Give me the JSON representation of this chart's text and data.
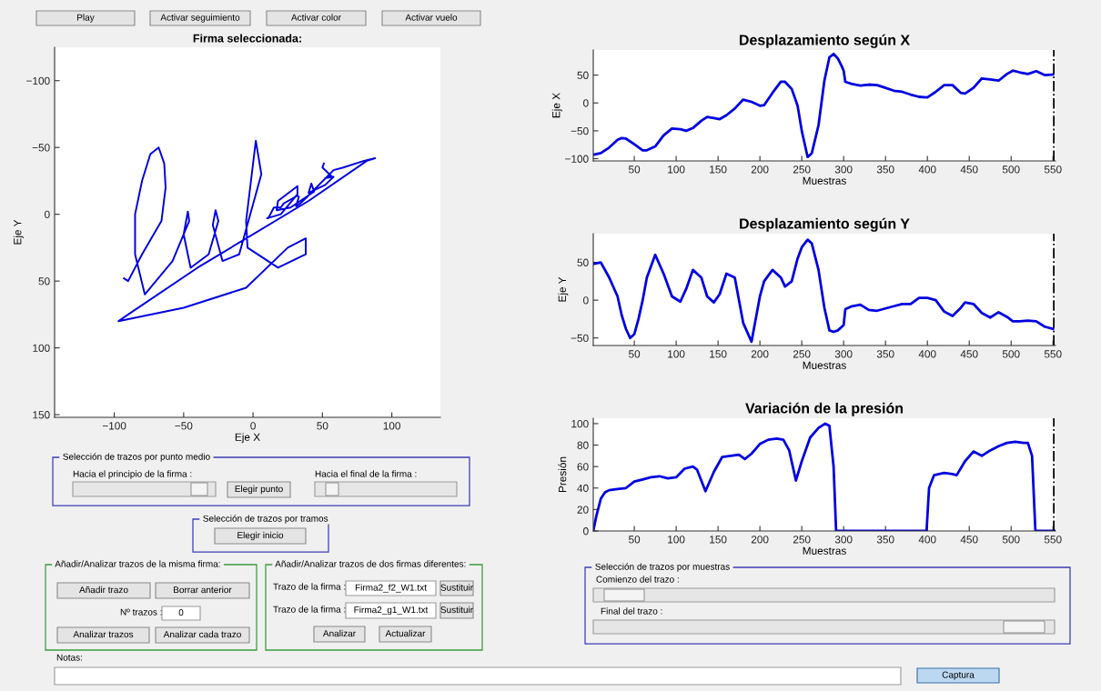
{
  "chart_data": [
    {
      "type": "line",
      "title": "Firma seleccionada:",
      "xlabel": "Eje X",
      "ylabel": "Eje Y",
      "xlim": [
        -143,
        135
      ],
      "ylim": [
        152,
        -125
      ],
      "xticks": [
        -100,
        -50,
        0,
        50,
        100
      ],
      "yticks": [
        -100,
        -50,
        0,
        50,
        100,
        150
      ],
      "grid": false,
      "marker": "none",
      "line_style": "solid",
      "series": [
        {
          "color": "#0000e0",
          "x": [
            -93,
            -90,
            -80,
            -66,
            -63,
            -64,
            -68,
            -74,
            -80,
            -85,
            -85,
            -78,
            -58,
            -46,
            -47,
            -50,
            -45,
            -32,
            -25,
            -27,
            -29,
            -22,
            -10,
            6,
            2,
            -5,
            -4,
            18,
            38,
            38,
            25,
            -5,
            -50,
            -97,
            -90,
            -40,
            40,
            82,
            88,
            80,
            65,
            58,
            38,
            34,
            31,
            33,
            32,
            27,
            22,
            20,
            15,
            11,
            10,
            20,
            32,
            32,
            18,
            17,
            27,
            44,
            42,
            40,
            52,
            58,
            55,
            52,
            57,
            50,
            51
          ],
          "values": [
            48,
            50,
            30,
            5,
            -20,
            -38,
            -50,
            -45,
            -25,
            0,
            30,
            60,
            35,
            5,
            -2,
            15,
            40,
            30,
            5,
            -3,
            8,
            35,
            30,
            -30,
            -55,
            5,
            25,
            40,
            30,
            18,
            25,
            55,
            70,
            80,
            75,
            40,
            -10,
            -40,
            -42,
            -40,
            -35,
            -33,
            -12,
            -8,
            -6,
            -13,
            -14,
            -11,
            -8,
            -5,
            -5,
            3,
            3,
            0,
            -15,
            -21,
            -10,
            -3,
            -5,
            -17,
            -23,
            -16,
            -22,
            -28,
            -28,
            -27,
            -28,
            -35,
            -38
          ]
        }
      ]
    },
    {
      "type": "line",
      "title": "Desplazamiento según X",
      "xlabel": "Muestras",
      "ylabel": "Eje X",
      "xlim": [
        1,
        553
      ],
      "ylim": [
        -104,
        95
      ],
      "xticks": [
        50,
        100,
        150,
        200,
        250,
        300,
        350,
        400,
        450,
        500,
        550
      ],
      "yticks": [
        -100,
        -50,
        0,
        50
      ],
      "grid": false,
      "marker": "none",
      "line_style": "solid",
      "x": [
        1,
        10,
        20,
        30,
        35,
        40,
        50,
        60,
        65,
        75,
        85,
        95,
        105,
        112,
        120,
        130,
        137,
        145,
        152,
        160,
        170,
        180,
        190,
        200,
        205,
        215,
        225,
        230,
        238,
        245,
        250,
        257,
        262,
        270,
        277,
        283,
        288,
        293,
        298,
        300,
        302,
        310,
        320,
        330,
        340,
        350,
        360,
        370,
        380,
        390,
        400,
        410,
        420,
        430,
        440,
        445,
        455,
        465,
        475,
        485,
        495,
        502,
        510,
        520,
        530,
        540,
        550
      ],
      "series": [
        {
          "color": "#0000e0",
          "values": [
            -93,
            -90,
            -80,
            -66,
            -63,
            -64,
            -74,
            -85,
            -85,
            -78,
            -58,
            -46,
            -47,
            -50,
            -45,
            -32,
            -25,
            -27,
            -29,
            -22,
            -10,
            6,
            2,
            -5,
            -4,
            18,
            38,
            38,
            25,
            -5,
            -50,
            -97,
            -90,
            -40,
            40,
            82,
            88,
            80,
            65,
            58,
            38,
            34,
            31,
            33,
            32,
            27,
            22,
            20,
            15,
            11,
            10,
            20,
            32,
            32,
            18,
            17,
            27,
            44,
            42,
            40,
            52,
            58,
            55,
            52,
            57,
            50,
            51
          ]
        }
      ],
      "ref_lines": [
        {
          "axis": "x",
          "value": 551,
          "color": "#000000",
          "line_style": "dashdot"
        }
      ]
    },
    {
      "type": "line",
      "title": "Desplazamiento según Y",
      "xlabel": "Muestras",
      "ylabel": "Eje Y",
      "xlim": [
        1,
        553
      ],
      "ylim": [
        -60,
        88
      ],
      "xticks": [
        50,
        100,
        150,
        200,
        250,
        300,
        350,
        400,
        450,
        500,
        550
      ],
      "yticks": [
        -50,
        0,
        50
      ],
      "grid": false,
      "marker": "none",
      "line_style": "solid",
      "x": [
        1,
        10,
        20,
        30,
        35,
        40,
        45,
        50,
        55,
        60,
        65,
        75,
        85,
        95,
        105,
        112,
        120,
        130,
        137,
        145,
        152,
        160,
        170,
        180,
        190,
        200,
        205,
        215,
        225,
        230,
        238,
        245,
        250,
        257,
        262,
        270,
        277,
        283,
        288,
        293,
        298,
        300,
        302,
        310,
        320,
        330,
        340,
        350,
        360,
        370,
        380,
        390,
        400,
        410,
        420,
        430,
        440,
        445,
        455,
        465,
        475,
        485,
        495,
        502,
        510,
        520,
        530,
        540,
        550
      ],
      "series": [
        {
          "color": "#0000e0",
          "values": [
            48,
            50,
            30,
            5,
            -20,
            -38,
            -50,
            -45,
            -25,
            0,
            30,
            60,
            35,
            5,
            -2,
            15,
            40,
            30,
            5,
            -3,
            8,
            35,
            30,
            -30,
            -55,
            5,
            25,
            40,
            30,
            18,
            25,
            55,
            70,
            80,
            75,
            40,
            -10,
            -40,
            -42,
            -40,
            -35,
            -33,
            -12,
            -8,
            -6,
            -13,
            -14,
            -11,
            -8,
            -5,
            -5,
            3,
            3,
            0,
            -15,
            -21,
            -10,
            -3,
            -5,
            -17,
            -23,
            -16,
            -22,
            -28,
            -28,
            -27,
            -28,
            -35,
            -38
          ]
        }
      ],
      "ref_lines": [
        {
          "axis": "x",
          "value": 551,
          "color": "#000000",
          "line_style": "dashdot"
        }
      ]
    },
    {
      "type": "line",
      "title": "Variación de la presión",
      "xlabel": "Muestras",
      "ylabel": "Presión",
      "xlim": [
        1,
        553
      ],
      "ylim": [
        0,
        105
      ],
      "xticks": [
        50,
        100,
        150,
        200,
        250,
        300,
        350,
        400,
        450,
        500,
        550
      ],
      "yticks": [
        0,
        20,
        40,
        60,
        80,
        100
      ],
      "grid": false,
      "marker": "none",
      "line_style": "solid",
      "x": [
        1,
        5,
        10,
        15,
        20,
        30,
        40,
        50,
        60,
        70,
        80,
        90,
        100,
        110,
        120,
        125,
        135,
        145,
        155,
        165,
        175,
        182,
        190,
        200,
        210,
        220,
        228,
        235,
        243,
        250,
        260,
        270,
        278,
        283,
        288,
        291,
        300,
        399,
        402,
        408,
        420,
        430,
        435,
        445,
        455,
        465,
        475,
        485,
        495,
        505,
        515,
        520,
        525,
        529,
        552
      ],
      "series": [
        {
          "color": "#0000e0",
          "values": [
            0,
            15,
            30,
            36,
            38,
            39,
            40,
            46,
            48,
            50,
            51,
            49,
            50,
            58,
            60,
            57,
            37,
            55,
            69,
            70,
            71,
            67,
            72,
            81,
            85,
            86,
            85,
            75,
            47,
            65,
            87,
            96,
            100,
            98,
            60,
            0,
            0,
            0,
            40,
            52,
            54,
            53,
            52,
            65,
            74,
            70,
            75,
            79,
            82,
            83,
            82,
            82,
            70,
            0,
            0
          ]
        }
      ],
      "ref_lines": [
        {
          "axis": "x",
          "value": 551,
          "color": "#000000",
          "line_style": "dashdot"
        }
      ]
    },
    {
      "type": "other",
      "annotations": [
        "Play",
        "Activar seguimiento",
        "Activar color",
        "Activar vuelo",
        "Selección de trazos por punto medio",
        "Hacia el principio de la firma :",
        "Elegir punto",
        "Hacia el final de la firma :",
        "Selección de trazos por tramos",
        "Elegir inicio",
        "Añadir/Analizar trazos de la misma firma:",
        "Añadir trazo",
        "Borrar anterior",
        "Nº trazos :",
        "0",
        "Analizar trazos",
        "Analizar cada trazo",
        "Añadir/Analizar trazos de dos firmas diferentes:",
        "Trazo de la firma :",
        "Firma2_f2_W1.txt",
        "Sustituir",
        "Trazo de la firma :",
        "Firma2_g1_W1.txt",
        "Sustituir",
        "Analizar",
        "Actualizar",
        "Selección de trazos por muestras",
        "Comienzo del trazo :",
        "Final del trazo :",
        "Notas:",
        "Captura"
      ]
    }
  ]
}
